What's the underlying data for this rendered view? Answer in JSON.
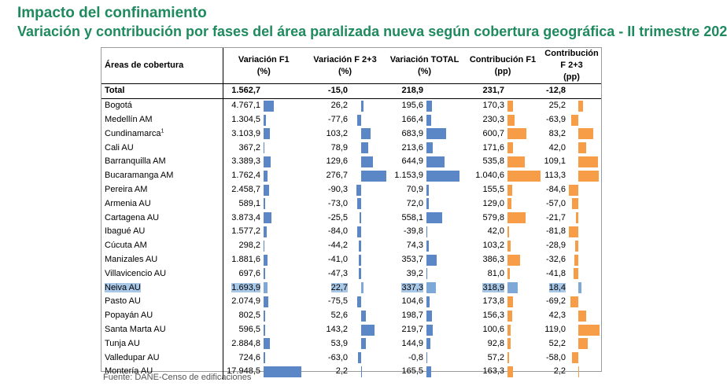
{
  "title": "Impacto del confinamiento",
  "subtitle": "Variación y contribución por fases del área paralizada nueva según cobertura geográfica - II trimestre 202",
  "table": {
    "headers": [
      {
        "line1": "Áreas de cobertura",
        "line2": ""
      },
      {
        "line1": "Variación F1",
        "line2": "(%)"
      },
      {
        "line1": "Variación F 2+3",
        "line2": "(%)"
      },
      {
        "line1": "Variación TOTAL",
        "line2": "(%)"
      },
      {
        "line1": "Contribución F1",
        "line2": "(pp)"
      },
      {
        "line1": "Contribución F 2+3",
        "line2": "(pp)"
      }
    ],
    "rows": [
      {
        "name": "Total",
        "sup": "",
        "v1": "1.562,7",
        "v2": "-15,0",
        "v3": "218,9",
        "c1": "231,7",
        "c2": "-12,8"
      },
      {
        "name": "Bogotá",
        "sup": "",
        "v1": "4.767,1",
        "v2": "26,2",
        "v3": "195,6",
        "c1": "170,3",
        "c2": "25,2"
      },
      {
        "name": "Medellín  AM",
        "sup": "",
        "v1": "1.304,5",
        "v2": "-77,6",
        "v3": "166,4",
        "c1": "230,3",
        "c2": "-63,9"
      },
      {
        "name": "Cundinamarca",
        "sup": "1",
        "v1": "3.103,9",
        "v2": "103,2",
        "v3": "683,9",
        "c1": "600,7",
        "c2": "83,2"
      },
      {
        "name": "Cali  AU",
        "sup": "",
        "v1": "367,2",
        "v2": "78,9",
        "v3": "213,6",
        "c1": "171,6",
        "c2": "42,0"
      },
      {
        "name": "Barranquilla  AM",
        "sup": "",
        "v1": "3.389,3",
        "v2": "129,6",
        "v3": "644,9",
        "c1": "535,8",
        "c2": "109,1"
      },
      {
        "name": "Bucaramanga  AM",
        "sup": "",
        "v1": "1.762,4",
        "v2": "276,7",
        "v3": "1.153,9",
        "c1": "1.040,6",
        "c2": "113,3"
      },
      {
        "name": "Pereira  AM",
        "sup": "",
        "v1": "2.458,7",
        "v2": "-90,3",
        "v3": "70,9",
        "c1": "155,5",
        "c2": "-84,6"
      },
      {
        "name": "Armenia  AU",
        "sup": "",
        "v1": "589,1",
        "v2": "-73,0",
        "v3": "72,0",
        "c1": "129,0",
        "c2": "-57,0"
      },
      {
        "name": "Cartagena AU",
        "sup": "",
        "v1": "3.873,4",
        "v2": "-25,5",
        "v3": "558,1",
        "c1": "579,8",
        "c2": "-21,7"
      },
      {
        "name": "Ibagué AU",
        "sup": "",
        "v1": "1.577,2",
        "v2": "-84,0",
        "v3": "-39,8",
        "c1": "42,0",
        "c2": "-81,8"
      },
      {
        "name": "Cúcuta AM",
        "sup": "",
        "v1": "298,2",
        "v2": "-44,2",
        "v3": "74,3",
        "c1": "103,2",
        "c2": "-28,9"
      },
      {
        "name": "Manizales AU",
        "sup": "",
        "v1": "1.881,6",
        "v2": "-41,0",
        "v3": "353,7",
        "c1": "386,3",
        "c2": "-32,6"
      },
      {
        "name": "Villavicencio AU",
        "sup": "",
        "v1": "697,6",
        "v2": "-47,3",
        "v3": "39,2",
        "c1": "81,0",
        "c2": "-41,8"
      },
      {
        "name": "Neiva AU",
        "sup": "",
        "v1": "1.693,9",
        "v2": "22,7",
        "v3": "337,3",
        "c1": "318,9",
        "c2": "18,4"
      },
      {
        "name": "Pasto AU",
        "sup": "",
        "v1": "2.074,9",
        "v2": "-75,5",
        "v3": "104,6",
        "c1": "173,8",
        "c2": "-69,2"
      },
      {
        "name": "Popayán AU",
        "sup": "",
        "v1": "802,5",
        "v2": "52,6",
        "v3": "198,7",
        "c1": "156,3",
        "c2": "42,3"
      },
      {
        "name": "Santa Marta AU",
        "sup": "",
        "v1": "596,5",
        "v2": "143,2",
        "v3": "219,7",
        "c1": "100,6",
        "c2": "119,0"
      },
      {
        "name": "Tunja AU",
        "sup": "",
        "v1": "2.884,8",
        "v2": "53,9",
        "v3": "144,9",
        "c1": "92,8",
        "c2": "52,2"
      },
      {
        "name": "Valledupar AU",
        "sup": "",
        "v1": "724,6",
        "v2": "-63,0",
        "v3": "-0,8",
        "c1": "57,2",
        "c2": "-58,0"
      },
      {
        "name": "Montería AU",
        "sup": "",
        "v1": "17.948,5",
        "v2": "2,2",
        "v3": "165,5",
        "c1": "163,3",
        "c2": "2,2"
      }
    ],
    "highlight_row": "Neiva AU",
    "colors": {
      "variacion_bar": "#5b87c6",
      "contribucion_bar": "#f79d48",
      "highlight": "#a9c8e8"
    }
  },
  "source": "Fuente: DANE-Censo de edificaciones"
}
